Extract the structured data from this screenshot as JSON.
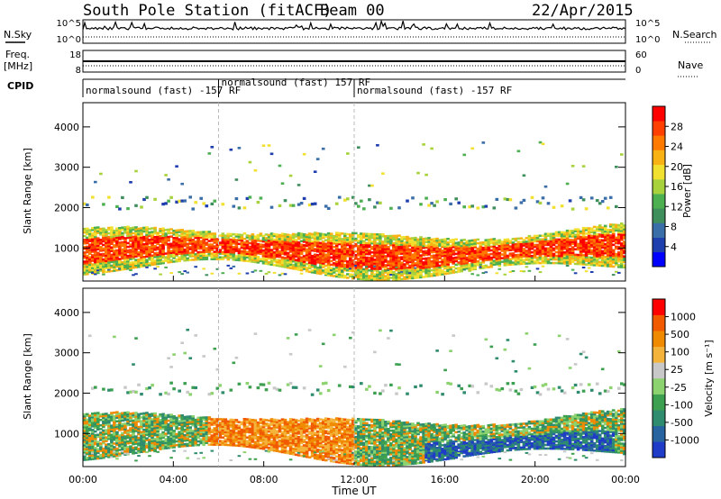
{
  "header": {
    "station": "South Pole Station (fitACF)",
    "beam": "Beam 00",
    "date": "22/Apr/2015"
  },
  "chart_data": [
    {
      "panel": "noise",
      "type": "line",
      "left_label": "N.Sky",
      "right_label": "N.Search",
      "left_ticks": [
        "10^5",
        "10^0"
      ],
      "right_ticks": [
        "10^5",
        "10^0"
      ]
    },
    {
      "panel": "frequency",
      "type": "line",
      "left_label": "Freq.",
      "left_unit": "[MHz]",
      "left_ticks": [
        "18",
        "8"
      ],
      "right_label": "Nave",
      "right_ticks": [
        "60",
        "0"
      ]
    },
    {
      "panel": "cpid",
      "type": "table",
      "label": "CPID",
      "segments": [
        {
          "start_h": 0,
          "end_h": 6,
          "text": "normalsound (fast) -157 RF"
        },
        {
          "start_h": 6,
          "end_h": 12,
          "text": "normalsound (fast) 157 RF"
        },
        {
          "start_h": 12,
          "end_h": 24,
          "text": "normalsound (fast) -157 RF"
        }
      ]
    },
    {
      "panel": "power",
      "type": "heatmap",
      "ylabel": "Slant Range [km]",
      "yticks": [
        1000,
        2000,
        3000,
        4000
      ],
      "ylim": [
        180,
        4600
      ],
      "xlim_hours": [
        0,
        24
      ],
      "colorbar_label": "Power [dB]",
      "colorbar_ticks": [
        "28",
        "24",
        "20",
        "16",
        "12",
        "8",
        "4"
      ],
      "colorbar_colors": [
        "#0000ff",
        "#1f3fae",
        "#3a6ea8",
        "#3f8f5c",
        "#4caf50",
        "#a8d23c",
        "#f2e030",
        "#f9b214",
        "#ff7a00",
        "#ff4000",
        "#ff0000"
      ]
    },
    {
      "panel": "velocity",
      "type": "heatmap",
      "ylabel": "Slant Range [km]",
      "yticks": [
        1000,
        2000,
        3000,
        4000
      ],
      "ylim": [
        180,
        4600
      ],
      "xlim_hours": [
        0,
        24
      ],
      "xlabel": "Time UT",
      "xticks": [
        "00:00",
        "04:00",
        "08:00",
        "12:00",
        "16:00",
        "20:00",
        "00:00"
      ],
      "colorbar_label": "Velocity [m s⁻¹]",
      "colorbar_ticks": [
        "1000",
        "500",
        "100",
        "25",
        "-25",
        "-100",
        "-500",
        "-1000"
      ],
      "colorbar_colors": [
        "#ff0000",
        "#f25a00",
        "#f08a00",
        "#f4b43c",
        "#c8c8c8",
        "#8cd26e",
        "#3ca050",
        "#2f8c6e",
        "#2864a0",
        "#1e3cc8"
      ]
    }
  ]
}
